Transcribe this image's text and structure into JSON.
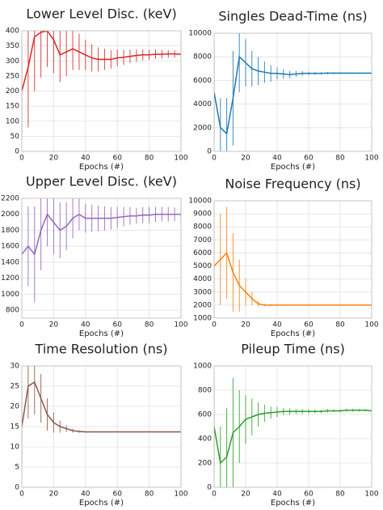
{
  "chart_data": [
    {
      "type": "line",
      "title": "Lower Level Disc. (keV)",
      "x_label": "Epochs (#)",
      "x": [
        0,
        4,
        8,
        12,
        16,
        20,
        24,
        28,
        32,
        36,
        40,
        44,
        48,
        52,
        56,
        60,
        64,
        68,
        72,
        76,
        80,
        84,
        88,
        92,
        96,
        100
      ],
      "series": [
        {
          "color": "#d62728",
          "values": [
            200,
            280,
            380,
            395,
            400,
            370,
            320,
            330,
            340,
            330,
            320,
            310,
            305,
            305,
            305,
            310,
            312,
            315,
            318,
            320,
            320,
            322,
            322,
            323,
            323,
            322
          ],
          "errors": [
            150,
            200,
            180,
            150,
            120,
            110,
            90,
            80,
            70,
            60,
            50,
            45,
            40,
            35,
            30,
            28,
            25,
            22,
            20,
            18,
            16,
            15,
            14,
            13,
            12,
            11
          ]
        }
      ],
      "xlim": [
        0,
        100
      ],
      "xticks": [
        0,
        20,
        40,
        60,
        80,
        100
      ],
      "ylim": [
        0,
        400
      ],
      "yticks": [
        0,
        50,
        100,
        150,
        200,
        250,
        300,
        350,
        400
      ],
      "grid": true
    },
    {
      "type": "line",
      "title": "Singles Dead-Time (ns)",
      "x_label": "Epochs (#)",
      "x": [
        0,
        4,
        8,
        12,
        16,
        20,
        24,
        28,
        32,
        36,
        40,
        44,
        48,
        52,
        56,
        60,
        64,
        68,
        72,
        76,
        80,
        84,
        88,
        92,
        96,
        100
      ],
      "series": [
        {
          "color": "#1f77b4",
          "values": [
            5000,
            2000,
            1500,
            4500,
            8000,
            7500,
            7000,
            6800,
            6700,
            6600,
            6600,
            6550,
            6500,
            6550,
            6600,
            6600,
            6600,
            6600,
            6620,
            6620,
            6620,
            6620,
            6620,
            6620,
            6620,
            6620
          ],
          "errors": [
            4000,
            2500,
            3000,
            4000,
            3000,
            2000,
            1500,
            1200,
            900,
            700,
            500,
            400,
            300,
            250,
            200,
            150,
            120,
            100,
            90,
            80,
            70,
            60,
            50,
            50,
            50,
            50
          ]
        }
      ],
      "xlim": [
        0,
        100
      ],
      "xticks": [
        0,
        20,
        40,
        60,
        80,
        100
      ],
      "ylim": [
        0,
        10000
      ],
      "yticks": [
        0,
        2000,
        4000,
        6000,
        8000,
        10000
      ],
      "grid": true
    },
    {
      "type": "line",
      "title": "Upper Level Disc. (keV)",
      "x_label": "Epochs (#)",
      "x": [
        0,
        4,
        8,
        12,
        16,
        20,
        24,
        28,
        32,
        36,
        40,
        44,
        48,
        52,
        56,
        60,
        64,
        68,
        72,
        76,
        80,
        84,
        88,
        92,
        96,
        100
      ],
      "series": [
        {
          "color": "#9467bd",
          "values": [
            1500,
            1600,
            1500,
            1800,
            2000,
            1900,
            1800,
            1850,
            1950,
            2000,
            1950,
            1950,
            1950,
            1950,
            1950,
            1960,
            1970,
            1980,
            1980,
            1990,
            1990,
            2000,
            2000,
            2000,
            2000,
            2000
          ],
          "errors": [
            400,
            500,
            600,
            500,
            400,
            400,
            350,
            300,
            250,
            200,
            180,
            170,
            160,
            150,
            140,
            130,
            120,
            110,
            100,
            100,
            100,
            95,
            90,
            90,
            85,
            80
          ]
        }
      ],
      "xlim": [
        0,
        100
      ],
      "xticks": [
        0,
        20,
        40,
        60,
        80,
        100
      ],
      "ylim": [
        700,
        2200
      ],
      "yticks": [
        800,
        1000,
        1200,
        1400,
        1600,
        1800,
        2000,
        2200
      ],
      "grid": true
    },
    {
      "type": "line",
      "title": "Noise Frequency (ns)",
      "x_label": "Epochs (#)",
      "x": [
        0,
        4,
        8,
        12,
        16,
        20,
        24,
        28,
        32,
        36,
        40,
        44,
        48,
        52,
        56,
        60,
        64,
        68,
        72,
        76,
        80,
        84,
        88,
        92,
        96,
        100
      ],
      "series": [
        {
          "color": "#ff7f0e",
          "values": [
            5000,
            5500,
            6000,
            4500,
            3500,
            3000,
            2500,
            2100,
            2000,
            2000,
            2000,
            2000,
            2000,
            2000,
            2000,
            2000,
            2000,
            2000,
            2000,
            2000,
            2000,
            2000,
            2000,
            2000,
            2000,
            2000
          ],
          "errors": [
            2000,
            3500,
            3500,
            3000,
            2000,
            1000,
            500,
            200,
            100,
            60,
            40,
            30,
            25,
            20,
            18,
            15,
            15,
            12,
            12,
            10,
            10,
            10,
            10,
            10,
            10,
            10
          ]
        }
      ],
      "xlim": [
        0,
        100
      ],
      "xticks": [
        0,
        20,
        40,
        60,
        80,
        100
      ],
      "ylim": [
        1000,
        10000
      ],
      "yticks": [
        1000,
        2000,
        3000,
        4000,
        5000,
        6000,
        7000,
        8000,
        9000,
        10000
      ],
      "grid": true
    },
    {
      "type": "line",
      "title": "Time Resolution (ns)",
      "x_label": "Epochs (#)",
      "x": [
        0,
        4,
        8,
        12,
        16,
        20,
        24,
        28,
        32,
        36,
        40,
        44,
        48,
        52,
        56,
        60,
        64,
        68,
        72,
        76,
        80,
        84,
        88,
        92,
        96,
        100
      ],
      "series": [
        {
          "color": "#8c564b",
          "values": [
            15,
            25,
            26,
            22,
            18,
            16,
            15,
            14.5,
            14,
            13.8,
            13.7,
            13.7,
            13.7,
            13.7,
            13.7,
            13.7,
            13.7,
            13.7,
            13.7,
            13.7,
            13.7,
            13.7,
            13.7,
            13.7,
            13.7,
            13.7
          ],
          "errors": [
            10,
            8,
            8,
            6,
            4,
            2.5,
            1.5,
            0.8,
            0.5,
            0.3,
            0.2,
            0.2,
            0.15,
            0.15,
            0.1,
            0.1,
            0.1,
            0.1,
            0.1,
            0.1,
            0.1,
            0.1,
            0.1,
            0.1,
            0.1,
            0.1
          ]
        }
      ],
      "xlim": [
        0,
        100
      ],
      "xticks": [
        0,
        20,
        40,
        60,
        80,
        100
      ],
      "ylim": [
        0,
        30
      ],
      "yticks": [
        0,
        5,
        10,
        15,
        20,
        25,
        30
      ],
      "grid": true
    },
    {
      "type": "line",
      "title": "Pileup Time (ns)",
      "x_label": "Epochs (#)",
      "x": [
        0,
        4,
        8,
        12,
        16,
        20,
        24,
        28,
        32,
        36,
        40,
        44,
        48,
        52,
        56,
        60,
        64,
        68,
        72,
        76,
        80,
        84,
        88,
        92,
        96,
        100
      ],
      "series": [
        {
          "color": "#2ca02c",
          "values": [
            500,
            200,
            250,
            450,
            500,
            560,
            580,
            600,
            610,
            615,
            620,
            625,
            625,
            625,
            625,
            625,
            625,
            625,
            630,
            630,
            630,
            635,
            635,
            635,
            635,
            630
          ],
          "errors": [
            400,
            300,
            400,
            450,
            300,
            200,
            150,
            100,
            70,
            50,
            40,
            30,
            25,
            20,
            20,
            18,
            15,
            15,
            15,
            12,
            12,
            12,
            12,
            10,
            10,
            10
          ]
        }
      ],
      "xlim": [
        0,
        100
      ],
      "xticks": [
        0,
        20,
        40,
        60,
        80,
        100
      ],
      "ylim": [
        0,
        1000
      ],
      "yticks": [
        0,
        200,
        400,
        600,
        800,
        1000
      ],
      "grid": true
    }
  ]
}
